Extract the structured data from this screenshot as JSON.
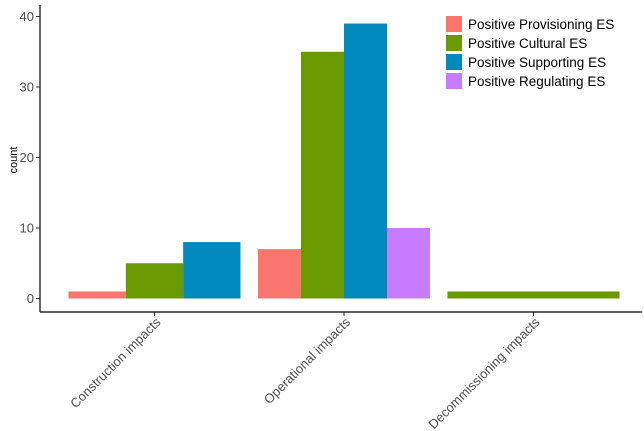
{
  "chart_data": {
    "type": "bar",
    "title": "",
    "xlabel": "",
    "ylabel": "count",
    "ylim": [
      0,
      40
    ],
    "yticks": [
      0,
      10,
      20,
      30,
      40
    ],
    "grid": false,
    "legend_position": "top-right",
    "categories": [
      "Construction impacts",
      "Operational impacts",
      "Decommissioning impacts"
    ],
    "series": [
      {
        "name": "Positive Provisioning ES",
        "color": "#F8766D",
        "values": [
          1,
          7,
          null
        ]
      },
      {
        "name": "Positive Cultural ES",
        "color": "#6B9A00",
        "values": [
          5,
          35,
          1
        ]
      },
      {
        "name": "Positive Supporting ES",
        "color": "#0089BC",
        "values": [
          8,
          39,
          null
        ]
      },
      {
        "name": "Positive Regulating ES",
        "color": "#C77CFF",
        "values": [
          null,
          10,
          null
        ]
      }
    ]
  }
}
